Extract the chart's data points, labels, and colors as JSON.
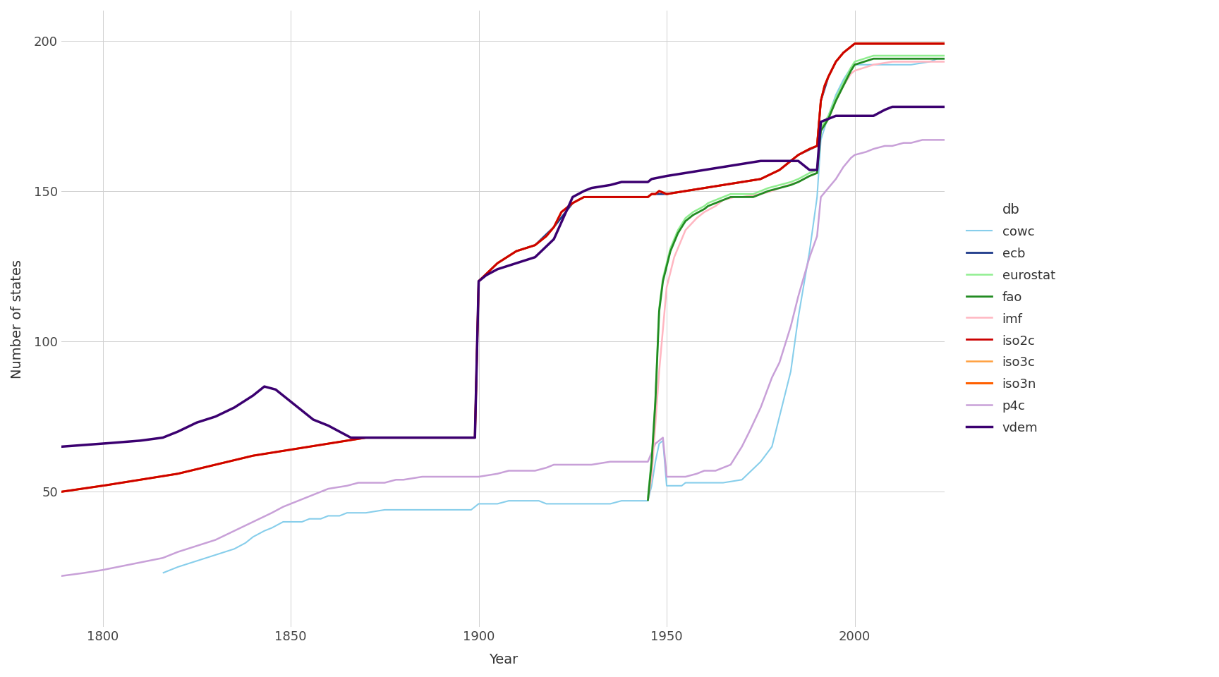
{
  "xlabel": "Year",
  "ylabel": "Number of states",
  "legend_title": "db",
  "xlim": [
    1789,
    2024
  ],
  "ylim": [
    5,
    210
  ],
  "yticks": [
    50,
    100,
    150,
    200
  ],
  "xticks": [
    1800,
    1850,
    1900,
    1950,
    2000
  ],
  "background_color": "#ffffff",
  "grid_color": "#d0d0d0",
  "series_colors": {
    "cowc": "#87CEEB",
    "ecb": "#1E3A8A",
    "eurostat": "#90EE90",
    "fao": "#228B22",
    "imf": "#FFB6C1",
    "iso2c": "#CC0000",
    "iso3c": "#FFA040",
    "iso3n": "#FF6000",
    "p4c": "#C8A0D8",
    "vdem": "#3B0070"
  },
  "series_linewidths": {
    "cowc": 1.5,
    "ecb": 2.0,
    "eurostat": 1.8,
    "fao": 2.0,
    "imf": 1.8,
    "iso2c": 2.0,
    "iso3c": 1.8,
    "iso3n": 2.2,
    "p4c": 1.8,
    "vdem": 2.5
  },
  "series_zorder": {
    "cowc": 3,
    "ecb": 6,
    "eurostat": 5,
    "fao": 7,
    "imf": 4,
    "iso2c": 8,
    "iso3c": 6,
    "iso3n": 7,
    "p4c": 3,
    "vdem": 9
  }
}
